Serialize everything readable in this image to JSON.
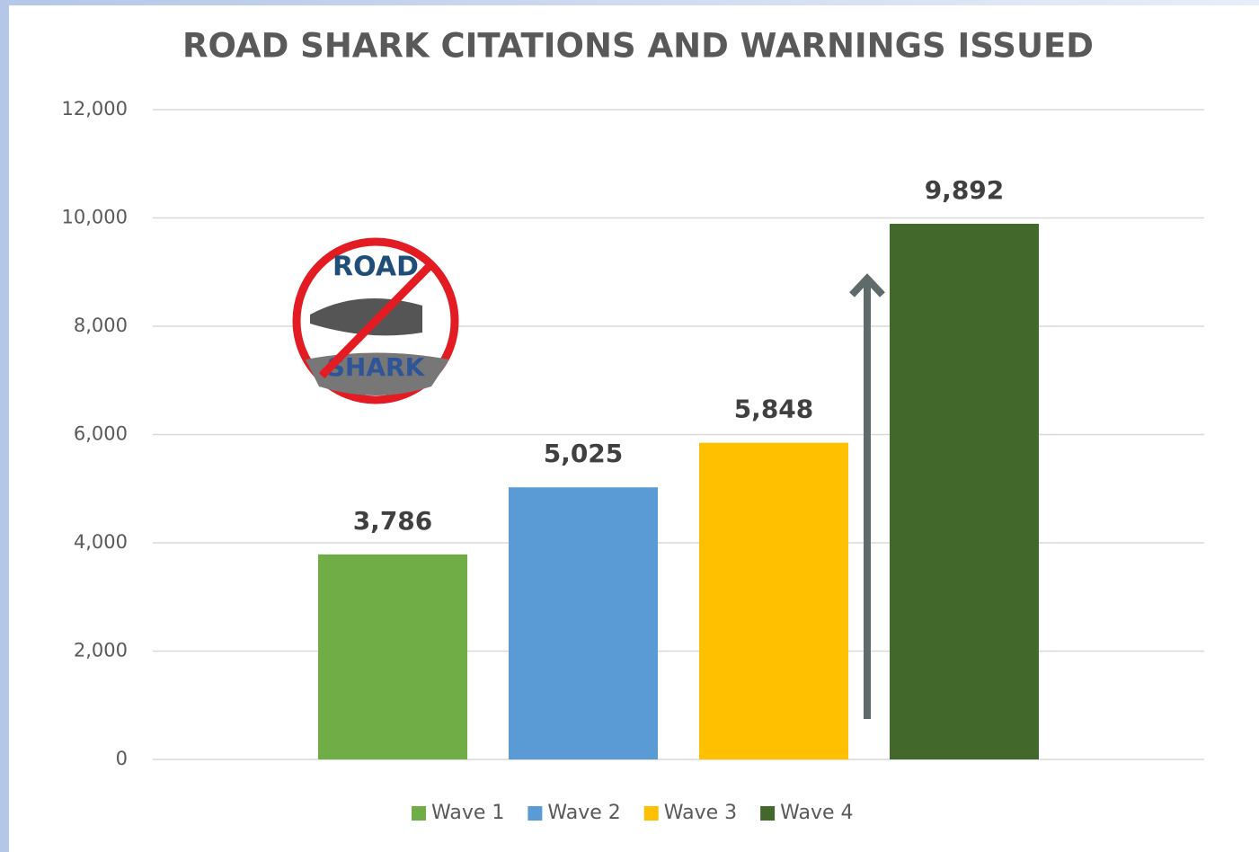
{
  "chart_data": {
    "type": "bar",
    "title": "ROAD SHARK CITATIONS AND WARNINGS ISSUED",
    "series": [
      {
        "name": "Wave 1",
        "color": "#70ad47",
        "values": [
          3786
        ],
        "value_labels": [
          "3,786"
        ]
      },
      {
        "name": "Wave 2",
        "color": "#5b9bd5",
        "values": [
          5025
        ],
        "value_labels": [
          "5,025"
        ]
      },
      {
        "name": "Wave 3",
        "color": "#ffc000",
        "values": [
          5848
        ],
        "value_labels": [
          "5,848"
        ]
      },
      {
        "name": "Wave 4",
        "color": "#43682b",
        "values": [
          9892
        ],
        "value_labels": [
          "9,892"
        ]
      }
    ],
    "ylim": [
      0,
      12000
    ],
    "yticks": [
      0,
      {
        "value": 2000,
        "label": "2,000"
      },
      {
        "value": 4000,
        "label": "4,000"
      },
      {
        "value": 6000,
        "label": "6,000"
      },
      {
        "value": 8000,
        "label": "8,000"
      },
      {
        "value": 10000,
        "label": "10,000"
      },
      {
        "value": 12000,
        "label": "12,000"
      }
    ],
    "grid": true,
    "legend": "bottom"
  },
  "logo": {
    "top": "ROAD",
    "bottom": "SHARK"
  }
}
